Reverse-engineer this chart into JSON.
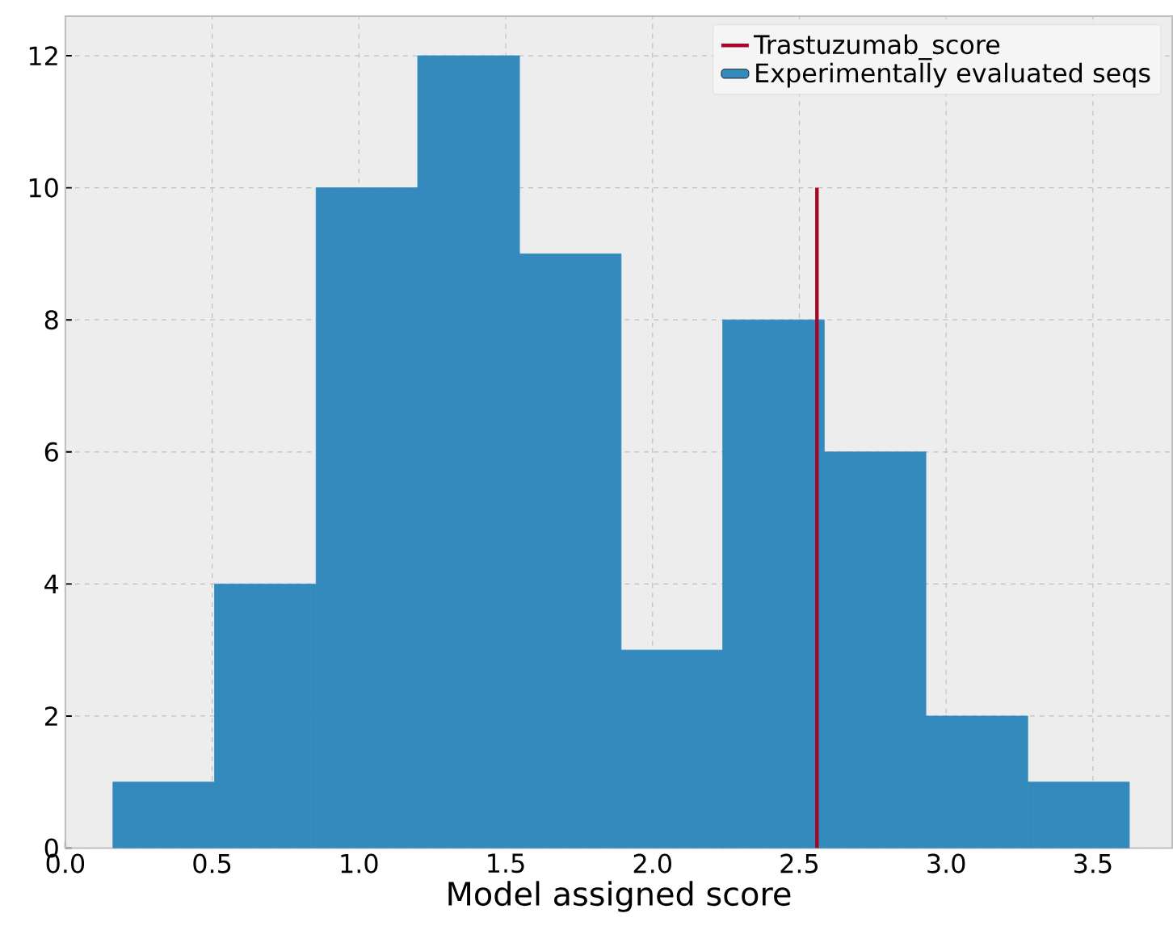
{
  "chart_data": {
    "type": "histogram",
    "xlabel": "Model assigned score",
    "bins": [
      0.162,
      0.508,
      0.854,
      1.2,
      1.547,
      1.893,
      2.239,
      2.585,
      2.931,
      3.278,
      3.624
    ],
    "series": [
      {
        "name": "Experimentally evaluated seqs",
        "color": "#348abd",
        "values": [
          1,
          4,
          10,
          12,
          9,
          3,
          8,
          6,
          2,
          1
        ]
      },
      {
        "type": "line",
        "name": "Trastuzumab_score",
        "color": "#a60628",
        "x": [
          2.56,
          2.56
        ],
        "values": [
          0,
          10
        ]
      }
    ],
    "xlim": [
      0,
      3.77
    ],
    "ylim": [
      0,
      12.6
    ],
    "xticks": [
      {
        "value": 0,
        "label": "0.0"
      },
      0.5,
      {
        "value": 1,
        "label": "1.0"
      },
      1.5,
      {
        "value": 2,
        "label": "2.0"
      },
      2.5,
      {
        "value": 3,
        "label": "3.0"
      },
      3.5
    ],
    "yticks": [
      0,
      2,
      4,
      6,
      8,
      10,
      12
    ],
    "grid": true,
    "legend": "top right"
  }
}
